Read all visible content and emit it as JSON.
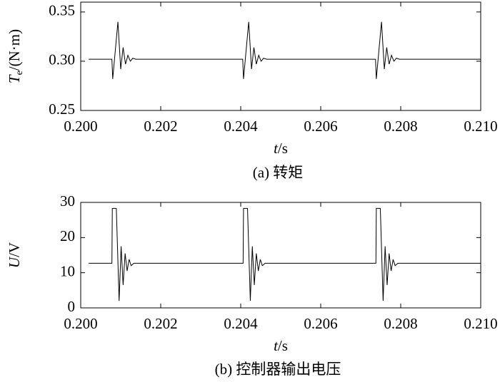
{
  "chart_data": [
    {
      "type": "line",
      "y_label": {
        "symbol": "T",
        "subscript": "e",
        "unit": "/(N·m)"
      },
      "x_label": {
        "symbol": "t",
        "unit": "/s"
      },
      "caption": "(a) 转矩",
      "xlim": [
        0.2,
        0.21
      ],
      "xticks": [
        {
          "value": 0.2,
          "label": "0.200"
        },
        {
          "value": 0.202,
          "label": "0.202"
        },
        {
          "value": 0.204,
          "label": "0.204"
        },
        {
          "value": 0.206,
          "label": "0.206"
        },
        {
          "value": 0.208,
          "label": "0.208"
        },
        {
          "value": 0.21,
          "label": "0.210"
        }
      ],
      "ylim": [
        0.25,
        0.36
      ],
      "yticks": [
        0.25,
        {
          "value": 0.3,
          "label": "0.30"
        },
        0.35
      ],
      "color": "#000000",
      "x": [
        0.2002,
        0.20078,
        0.2008,
        0.20093,
        0.201,
        0.20106,
        0.20112,
        0.20118,
        0.20124,
        0.2013,
        0.20138,
        0.20405,
        0.20407,
        0.2042,
        0.20427,
        0.20433,
        0.20439,
        0.20445,
        0.20451,
        0.20457,
        0.20465,
        0.20737,
        0.20739,
        0.20752,
        0.20759,
        0.20765,
        0.20771,
        0.20777,
        0.20783,
        0.20789,
        0.20797,
        0.21
      ],
      "values": [
        0.302,
        0.302,
        0.282,
        0.34,
        0.292,
        0.314,
        0.297,
        0.306,
        0.3,
        0.303,
        0.302,
        0.302,
        0.282,
        0.34,
        0.292,
        0.314,
        0.297,
        0.306,
        0.3,
        0.303,
        0.302,
        0.302,
        0.282,
        0.34,
        0.292,
        0.314,
        0.297,
        0.306,
        0.3,
        0.303,
        0.302,
        0.302
      ]
    },
    {
      "type": "line",
      "y_label": {
        "symbol": "U",
        "unit": "/V"
      },
      "x_label": {
        "symbol": "t",
        "unit": "/s"
      },
      "caption": "(b) 控制器输出电压",
      "xlim": [
        0.2,
        0.21
      ],
      "xticks": [
        {
          "value": 0.2,
          "label": "0.200"
        },
        {
          "value": 0.202,
          "label": "0.202"
        },
        {
          "value": 0.204,
          "label": "0.204"
        },
        {
          "value": 0.206,
          "label": "0.206"
        },
        {
          "value": 0.208,
          "label": "0.208"
        },
        {
          "value": 0.21,
          "label": "0.210"
        }
      ],
      "ylim": [
        0,
        30
      ],
      "yticks": [
        0,
        10,
        20,
        30
      ],
      "color": "#000000",
      "x": [
        0.2002,
        0.20078,
        0.20079,
        0.20089,
        0.20096,
        0.20101,
        0.20106,
        0.20111,
        0.20116,
        0.20121,
        0.20126,
        0.20133,
        0.20406,
        0.20407,
        0.20417,
        0.20424,
        0.20429,
        0.20434,
        0.20439,
        0.20444,
        0.20449,
        0.20454,
        0.20461,
        0.20738,
        0.20739,
        0.20749,
        0.20756,
        0.20761,
        0.20766,
        0.20771,
        0.20776,
        0.20781,
        0.20786,
        0.20793,
        0.21
      ],
      "values": [
        12.7,
        12.7,
        28.3,
        28.3,
        2.0,
        17.5,
        6.5,
        15.5,
        10.5,
        13.8,
        12.0,
        12.7,
        12.7,
        28.3,
        28.3,
        2.0,
        17.5,
        6.5,
        15.5,
        10.5,
        13.8,
        12.0,
        12.7,
        12.7,
        28.3,
        28.3,
        2.0,
        17.5,
        6.5,
        15.5,
        10.5,
        13.8,
        12.0,
        12.7,
        12.7
      ]
    }
  ]
}
